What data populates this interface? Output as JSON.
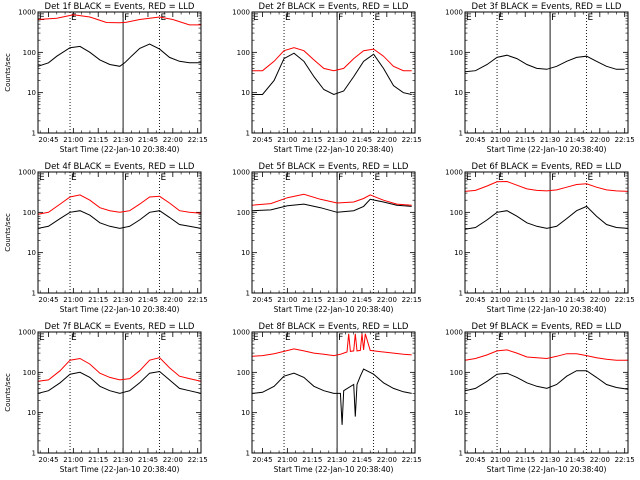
{
  "colors": {
    "events": "#000000",
    "lld": "#ff0000",
    "frame": "#000000"
  },
  "chart_data": [
    {
      "type": "line",
      "title": "Det 1f BLACK = Events, RED = LLD",
      "ylabel": "Counts/sec",
      "xlabel": "Start Time (22-Jan-10 20:38:40)",
      "yscale": "log",
      "ylim": [
        1,
        1000
      ],
      "y_ticks": [
        "1",
        "10",
        "100",
        "1000"
      ],
      "x_ticks": [
        "20:45",
        "21:00",
        "21:15",
        "21:30",
        "21:45",
        "22:00",
        "22:15"
      ],
      "xlim_min": [
        38.67,
        137
      ],
      "markers": [
        {
          "x_min": 58,
          "label": "E",
          "style": "dotted"
        },
        {
          "x_min": 90,
          "label": "F",
          "style": "solid"
        },
        {
          "x_min": 112,
          "label": "E",
          "style": "dotted"
        }
      ],
      "series": [
        {
          "name": "Events",
          "color": "#000000",
          "x": [
            38.67,
            45,
            50,
            58,
            64,
            70,
            76,
            82,
            88,
            91,
            95,
            100,
            106,
            112,
            118,
            124,
            130,
            137
          ],
          "y": [
            45,
            55,
            80,
            130,
            140,
            100,
            65,
            50,
            45,
            55,
            80,
            125,
            160,
            120,
            75,
            60,
            55,
            55
          ]
        },
        {
          "name": "LLD",
          "color": "#ff0000",
          "x": [
            38.67,
            50,
            60,
            70,
            80,
            88,
            92,
            100,
            106,
            112,
            120,
            130,
            137
          ],
          "y": [
            650,
            700,
            850,
            750,
            550,
            540,
            560,
            650,
            700,
            750,
            650,
            480,
            480
          ]
        }
      ]
    },
    {
      "type": "line",
      "title": "Det 2f BLACK = Events, RED = LLD",
      "ylabel": "",
      "xlabel": "Start Time (22-Jan-10 20:38:40)",
      "yscale": "log",
      "ylim": [
        1,
        1000
      ],
      "y_ticks": [
        "1",
        "10",
        "100",
        "1000"
      ],
      "x_ticks": [
        "20:45",
        "21:00",
        "21:15",
        "21:30",
        "21:45",
        "22:00",
        "22:15"
      ],
      "xlim_min": [
        38.67,
        137
      ],
      "markers": [
        {
          "x_min": 58,
          "label": "E",
          "style": "dotted"
        },
        {
          "x_min": 90,
          "label": "F",
          "style": "solid"
        },
        {
          "x_min": 112,
          "label": "E",
          "style": "dotted"
        }
      ],
      "series": [
        {
          "name": "Events",
          "color": "#000000",
          "x": [
            38.67,
            45,
            52,
            58,
            64,
            70,
            76,
            82,
            88,
            94,
            100,
            106,
            112,
            118,
            124,
            130,
            135
          ],
          "y": [
            9,
            9,
            20,
            70,
            95,
            60,
            25,
            12,
            9,
            11,
            25,
            60,
            90,
            40,
            15,
            10,
            9
          ]
        },
        {
          "name": "LLD",
          "color": "#ff0000",
          "x": [
            38.67,
            45,
            52,
            58,
            64,
            70,
            76,
            82,
            88,
            94,
            100,
            106,
            112,
            118,
            124,
            130,
            135
          ],
          "y": [
            35,
            35,
            60,
            110,
            130,
            110,
            65,
            40,
            35,
            40,
            70,
            110,
            120,
            80,
            45,
            35,
            35
          ]
        }
      ]
    },
    {
      "type": "line",
      "title": "Det 3f BLACK = Events, RED = LLD",
      "ylabel": "",
      "xlabel": "Start Time (22-Jan-10 20:38:40)",
      "yscale": "log",
      "ylim": [
        1,
        1000
      ],
      "y_ticks": [
        "1",
        "10",
        "100",
        "1000"
      ],
      "x_ticks": [
        "20:45",
        "21:00",
        "21:15",
        "21:30",
        "21:45",
        "22:00",
        "22:15"
      ],
      "xlim_min": [
        38.67,
        137
      ],
      "markers": [
        {
          "x_min": 58,
          "label": "E",
          "style": "dotted"
        },
        {
          "x_min": 90,
          "label": "F",
          "style": "solid"
        },
        {
          "x_min": 112,
          "label": "E",
          "style": "dotted"
        }
      ],
      "series": [
        {
          "name": "Events",
          "color": "#000000",
          "x": [
            38.67,
            45,
            52,
            58,
            64,
            70,
            76,
            82,
            88,
            94,
            100,
            106,
            112,
            118,
            124,
            130,
            135
          ],
          "y": [
            33,
            35,
            50,
            75,
            85,
            70,
            50,
            40,
            38,
            45,
            60,
            75,
            80,
            60,
            45,
            38,
            38
          ]
        }
      ]
    },
    {
      "type": "line",
      "title": "Det 4f BLACK = Events, RED = LLD",
      "ylabel": "Counts/sec",
      "xlabel": "Start Time (22-Jan-10 20:38:40)",
      "yscale": "log",
      "ylim": [
        1,
        1000
      ],
      "y_ticks": [
        "1",
        "10",
        "100",
        "1000"
      ],
      "x_ticks": [
        "20:45",
        "21:00",
        "21:15",
        "21:30",
        "21:45",
        "22:00",
        "22:15"
      ],
      "xlim_min": [
        38.67,
        137
      ],
      "markers": [
        {
          "x_min": 58,
          "label": "E",
          "style": "dotted"
        },
        {
          "x_min": 90,
          "label": "F",
          "style": "solid"
        },
        {
          "x_min": 112,
          "label": "E",
          "style": "dotted"
        }
      ],
      "series": [
        {
          "name": "Events",
          "color": "#000000",
          "x": [
            38.67,
            45,
            52,
            58,
            64,
            70,
            76,
            82,
            88,
            94,
            100,
            106,
            112,
            118,
            124,
            130,
            137
          ],
          "y": [
            40,
            45,
            70,
            100,
            110,
            85,
            55,
            45,
            40,
            45,
            65,
            100,
            110,
            75,
            50,
            45,
            40
          ]
        },
        {
          "name": "LLD",
          "color": "#ff0000",
          "x": [
            38.67,
            45,
            52,
            58,
            64,
            70,
            76,
            82,
            88,
            94,
            100,
            106,
            112,
            118,
            124,
            130,
            137
          ],
          "y": [
            90,
            100,
            160,
            240,
            270,
            200,
            130,
            110,
            100,
            110,
            160,
            240,
            250,
            170,
            110,
            100,
            95
          ]
        }
      ]
    },
    {
      "type": "line",
      "title": "Det 5f BLACK = Events, RED = LLD",
      "ylabel": "",
      "xlabel": "Start Time (22-Jan-10 20:38:40)",
      "yscale": "log",
      "ylim": [
        1,
        1000
      ],
      "y_ticks": [
        "1",
        "10",
        "100",
        "1000"
      ],
      "x_ticks": [
        "20:45",
        "21:00",
        "21:15",
        "21:30",
        "21:45",
        "22:00",
        "22:15"
      ],
      "xlim_min": [
        38.67,
        137
      ],
      "markers": [
        {
          "x_min": 58,
          "label": "E",
          "style": "dotted"
        },
        {
          "x_min": 90,
          "label": "F",
          "style": "solid"
        },
        {
          "x_min": 112,
          "label": "E",
          "style": "dotted"
        }
      ],
      "series": [
        {
          "name": "Events",
          "color": "#000000",
          "x": [
            38.67,
            50,
            60,
            70,
            80,
            90,
            100,
            106,
            110,
            118,
            126,
            135
          ],
          "y": [
            110,
            115,
            145,
            160,
            130,
            100,
            110,
            140,
            210,
            180,
            150,
            140
          ]
        },
        {
          "name": "LLD",
          "color": "#ff0000",
          "x": [
            38.67,
            50,
            60,
            70,
            80,
            90,
            100,
            106,
            110,
            118,
            126,
            135
          ],
          "y": [
            150,
            165,
            230,
            280,
            210,
            170,
            180,
            220,
            270,
            200,
            160,
            150
          ]
        }
      ]
    },
    {
      "type": "line",
      "title": "Det 6f BLACK = Events, RED = LLD",
      "ylabel": "",
      "xlabel": "Start Time (22-Jan-10 20:38:40)",
      "yscale": "log",
      "ylim": [
        1,
        1000
      ],
      "y_ticks": [
        "1",
        "10",
        "100",
        "1000"
      ],
      "x_ticks": [
        "20:45",
        "21:00",
        "21:15",
        "21:30",
        "21:45",
        "22:00",
        "22:15"
      ],
      "xlim_min": [
        38.67,
        137
      ],
      "markers": [
        {
          "x_min": 58,
          "label": "E",
          "style": "dotted"
        },
        {
          "x_min": 90,
          "label": "F",
          "style": "solid"
        },
        {
          "x_min": 112,
          "label": "E",
          "style": "dotted"
        }
      ],
      "series": [
        {
          "name": "Events",
          "color": "#000000",
          "x": [
            38.67,
            45,
            52,
            58,
            64,
            70,
            76,
            82,
            88,
            94,
            100,
            106,
            112,
            118,
            124,
            130,
            137
          ],
          "y": [
            38,
            42,
            65,
            100,
            110,
            80,
            55,
            45,
            40,
            45,
            70,
            110,
            140,
            80,
            50,
            42,
            40
          ]
        },
        {
          "name": "LLD",
          "color": "#ff0000",
          "x": [
            38.67,
            45,
            52,
            58,
            64,
            70,
            76,
            82,
            88,
            94,
            100,
            106,
            112,
            118,
            124,
            130,
            137
          ],
          "y": [
            330,
            350,
            450,
            570,
            580,
            470,
            380,
            350,
            340,
            360,
            420,
            490,
            510,
            420,
            360,
            340,
            330
          ]
        }
      ]
    },
    {
      "type": "line",
      "title": "Det 7f BLACK = Events, RED = LLD",
      "ylabel": "Counts/sec",
      "xlabel": "Start Time (22-Jan-10 20:38:40)",
      "yscale": "log",
      "ylim": [
        1,
        1000
      ],
      "y_ticks": [
        "1",
        "10",
        "100",
        "1000"
      ],
      "x_ticks": [
        "20:45",
        "21:00",
        "21:15",
        "21:30",
        "21:45",
        "22:00",
        "22:15"
      ],
      "xlim_min": [
        38.67,
        137
      ],
      "markers": [
        {
          "x_min": 58,
          "label": "E",
          "style": "dotted"
        },
        {
          "x_min": 90,
          "label": "F",
          "style": "solid"
        },
        {
          "x_min": 112,
          "label": "E",
          "style": "dotted"
        }
      ],
      "series": [
        {
          "name": "Events",
          "color": "#000000",
          "x": [
            38.67,
            45,
            52,
            58,
            64,
            70,
            76,
            82,
            88,
            94,
            100,
            106,
            112,
            118,
            124,
            130,
            137
          ],
          "y": [
            30,
            35,
            55,
            90,
            100,
            75,
            45,
            35,
            30,
            35,
            55,
            95,
            105,
            65,
            40,
            35,
            30
          ]
        },
        {
          "name": "LLD",
          "color": "#ff0000",
          "x": [
            38.67,
            45,
            52,
            58,
            64,
            70,
            76,
            82,
            88,
            94,
            100,
            106,
            112,
            118,
            124,
            130,
            137
          ],
          "y": [
            60,
            65,
            110,
            200,
            220,
            160,
            95,
            75,
            65,
            70,
            110,
            200,
            230,
            130,
            80,
            70,
            60
          ]
        }
      ]
    },
    {
      "type": "line",
      "title": "Det 8f BLACK = Events, RED = LLD",
      "ylabel": "",
      "xlabel": "Start Time (22-Jan-10 20:38:40)",
      "yscale": "log",
      "ylim": [
        1,
        1000
      ],
      "y_ticks": [
        "1",
        "10",
        "100",
        "1000"
      ],
      "x_ticks": [
        "20:45",
        "21:00",
        "21:15",
        "21:30",
        "21:45",
        "22:00",
        "22:15"
      ],
      "xlim_min": [
        38.67,
        137
      ],
      "markers": [
        {
          "x_min": 58,
          "label": "E",
          "style": "dotted"
        },
        {
          "x_min": 90,
          "label": "F",
          "style": "solid"
        },
        {
          "x_min": 112,
          "label": "E",
          "style": "dotted"
        }
      ],
      "series": [
        {
          "name": "Events",
          "color": "#000000",
          "x": [
            38.67,
            45,
            52,
            58,
            64,
            70,
            76,
            82,
            88,
            92,
            93,
            94,
            100,
            101,
            102,
            104,
            106,
            112,
            118,
            124,
            130,
            135
          ],
          "y": [
            30,
            32,
            45,
            80,
            95,
            75,
            45,
            35,
            30,
            30,
            5,
            35,
            50,
            8,
            50,
            80,
            120,
            90,
            55,
            40,
            33,
            30
          ]
        },
        {
          "name": "LLD",
          "color": "#ff0000",
          "x": [
            38.67,
            45,
            52,
            58,
            64,
            70,
            76,
            82,
            88,
            92,
            94,
            96,
            97,
            98,
            100,
            101,
            102,
            104,
            105,
            106,
            107,
            110,
            118,
            124,
            130,
            135
          ],
          "y": [
            250,
            260,
            290,
            330,
            380,
            340,
            300,
            280,
            260,
            280,
            300,
            320,
            900,
            330,
            340,
            900,
            340,
            350,
            900,
            360,
            900,
            350,
            320,
            300,
            280,
            270
          ]
        }
      ]
    },
    {
      "type": "line",
      "title": "Det 9f BLACK = Events, RED = LLD",
      "ylabel": "",
      "xlabel": "Start Time (22-Jan-10 20:38:40)",
      "yscale": "log",
      "ylim": [
        1,
        1000
      ],
      "y_ticks": [
        "1",
        "10",
        "100",
        "1000"
      ],
      "x_ticks": [
        "20:45",
        "21:00",
        "21:15",
        "21:30",
        "21:45",
        "22:00",
        "22:15"
      ],
      "xlim_min": [
        38.67,
        137
      ],
      "markers": [
        {
          "x_min": 58,
          "label": "E",
          "style": "dotted"
        },
        {
          "x_min": 90,
          "label": "F",
          "style": "solid"
        },
        {
          "x_min": 112,
          "label": "E",
          "style": "dotted"
        }
      ],
      "series": [
        {
          "name": "Events",
          "color": "#000000",
          "x": [
            38.67,
            45,
            52,
            58,
            64,
            70,
            76,
            82,
            88,
            94,
            100,
            106,
            112,
            118,
            124,
            130,
            137
          ],
          "y": [
            35,
            40,
            60,
            90,
            95,
            75,
            55,
            45,
            40,
            50,
            80,
            110,
            110,
            75,
            50,
            42,
            38
          ]
        },
        {
          "name": "LLD",
          "color": "#ff0000",
          "x": [
            38.67,
            45,
            52,
            58,
            64,
            70,
            76,
            82,
            88,
            94,
            100,
            106,
            112,
            118,
            124,
            130,
            137
          ],
          "y": [
            200,
            220,
            270,
            340,
            360,
            300,
            240,
            230,
            220,
            250,
            290,
            290,
            260,
            230,
            210,
            200,
            200
          ]
        }
      ]
    }
  ]
}
